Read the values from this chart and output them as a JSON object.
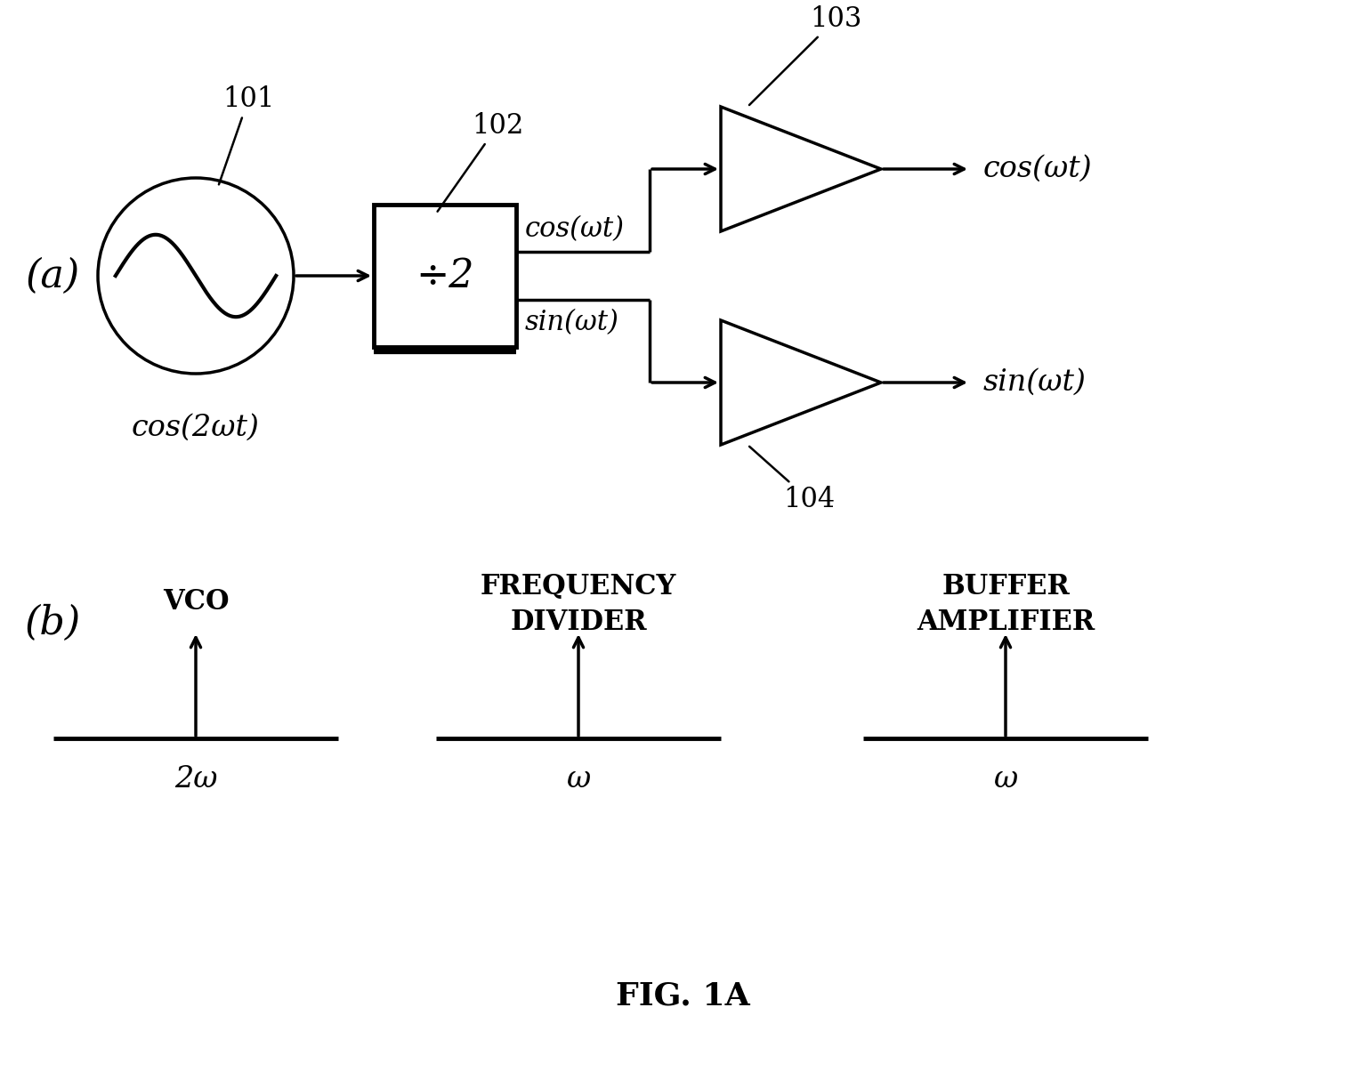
{
  "title": "FIG. 1A",
  "background_color": "#ffffff",
  "label_a": "(a)",
  "label_b": "(b)",
  "node_101": "101",
  "node_102": "102",
  "node_103": "103",
  "node_104": "104",
  "cos2wt": "cos(2ωt)",
  "coswt_out": "cos(ωt)",
  "sinwt_out": "sin(ωt)",
  "cos_label": "cos(ωt)",
  "sin_label": "sin(ωt)",
  "div2_label": "÷2",
  "vco_label": "VCO",
  "freq_div_label1": "FREQUENCY",
  "freq_div_label2": "DIVIDER",
  "buffer_amp_label1": "BUFFER",
  "buffer_amp_label2": "AMPLIFIER",
  "freq_2w": "2ω",
  "freq_w1": "ω",
  "freq_w2": "ω",
  "fig_width": 15.35,
  "fig_height": 12.14,
  "dpi": 100
}
